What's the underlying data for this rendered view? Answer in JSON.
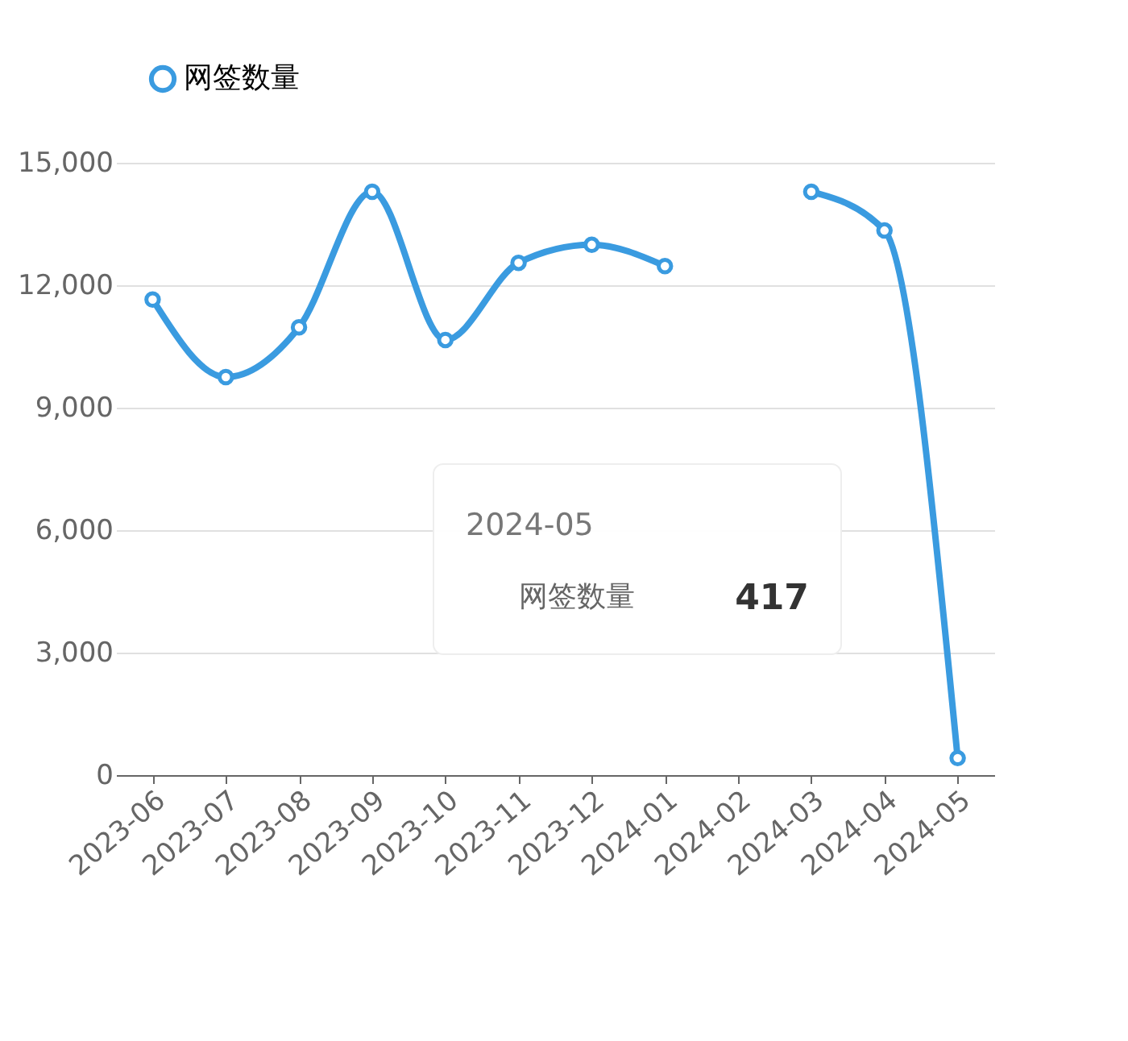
{
  "chart_data": {
    "type": "line",
    "categories": [
      "2023-06",
      "2023-07",
      "2023-08",
      "2023-09",
      "2023-10",
      "2023-11",
      "2023-12",
      "2024-01",
      "2024-02",
      "2024-03",
      "2024-04",
      "2024-05"
    ],
    "series": [
      {
        "name": "网签数量",
        "color": "#3a9be0",
        "values": [
          11650,
          9750,
          10970,
          14290,
          10660,
          12550,
          12990,
          12470,
          null,
          14290,
          13340,
          417
        ]
      }
    ],
    "ylim": [
      0,
      15000
    ],
    "yticks": [
      {
        "value": 0,
        "label": "0"
      },
      {
        "value": 3000,
        "label": "3,000"
      },
      {
        "value": 6000,
        "label": "6,000"
      },
      {
        "value": 9000,
        "label": "9,000"
      },
      {
        "value": 12000,
        "label": "12,000"
      },
      {
        "value": 15000,
        "label": "15,000"
      }
    ],
    "grid": "y",
    "legend": "top",
    "marker": "circle",
    "line_style": "solid",
    "annotations": [
      "2024-05",
      "网签数量",
      "417"
    ]
  }
}
